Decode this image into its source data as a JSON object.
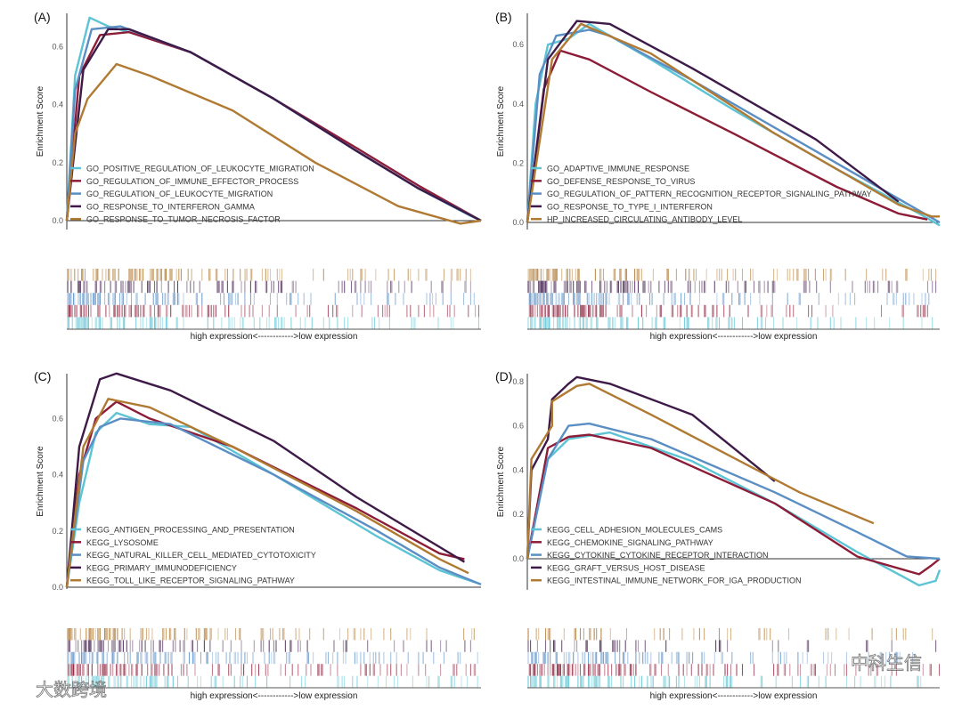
{
  "colors": {
    "cyan": "#5cc4d4",
    "red": "#8c1c38",
    "blue": "#5b8fc4",
    "purple": "#3e1a48",
    "brown": "#b07a32"
  },
  "watermarks": {
    "left": "大数跨境",
    "right": "中科生信"
  },
  "chart_data": [
    {
      "type": "line",
      "panel_label": "(A)",
      "ylabel": "Enrichment Score",
      "xlabel": "high expression<------------>low expression",
      "ylim": [
        -0.03,
        0.72
      ],
      "yticks": [
        "0.0",
        "0.2",
        "0.4",
        "0.6"
      ],
      "ytick_values": [
        0,
        0.2,
        0.4,
        0.6
      ],
      "series": [
        {
          "name": "GO_POSITIVE_REGULATION_OF_LEUKOCYTE_MIGRATION",
          "color": "cyan",
          "points": [
            [
              0,
              0
            ],
            [
              0.02,
              0.5
            ],
            [
              0.055,
              0.7
            ],
            [
              0.1,
              0.67
            ],
            [
              0.2,
              0.63
            ],
            [
              0.3,
              0.58
            ],
            [
              0.5,
              0.42
            ],
            [
              0.7,
              0.24
            ],
            [
              0.85,
              0.11
            ],
            [
              0.97,
              0.02
            ],
            [
              1,
              0
            ]
          ]
        },
        {
          "name": "GO_REGULATION_OF_IMMUNE_EFFECTOR_PROCESS",
          "color": "red",
          "points": [
            [
              0,
              0
            ],
            [
              0.03,
              0.5
            ],
            [
              0.08,
              0.64
            ],
            [
              0.15,
              0.65
            ],
            [
              0.3,
              0.58
            ],
            [
              0.5,
              0.42
            ],
            [
              0.7,
              0.25
            ],
            [
              0.85,
              0.12
            ],
            [
              1,
              0
            ]
          ]
        },
        {
          "name": "GO_REGULATION_OF_LEUKOCYTE_MIGRATION",
          "color": "blue",
          "points": [
            [
              0,
              0
            ],
            [
              0.02,
              0.45
            ],
            [
              0.06,
              0.66
            ],
            [
              0.13,
              0.67
            ],
            [
              0.3,
              0.58
            ],
            [
              0.5,
              0.42
            ],
            [
              0.7,
              0.24
            ],
            [
              0.85,
              0.11
            ],
            [
              0.96,
              0.03
            ],
            [
              1,
              0
            ]
          ]
        },
        {
          "name": "GO_RESPONSE_TO_INTERFERON_GAMMA",
          "color": "purple",
          "points": [
            [
              0,
              0
            ],
            [
              0.04,
              0.52
            ],
            [
              0.1,
              0.66
            ],
            [
              0.15,
              0.66
            ],
            [
              0.3,
              0.58
            ],
            [
              0.5,
              0.42
            ],
            [
              0.7,
              0.24
            ],
            [
              0.85,
              0.11
            ],
            [
              1,
              0
            ]
          ]
        },
        {
          "name": "GO_RESPONSE_TO_TUMOR_NECROSIS_FACTOR",
          "color": "brown",
          "points": [
            [
              0,
              0
            ],
            [
              0.02,
              0.3
            ],
            [
              0.05,
              0.42
            ],
            [
              0.12,
              0.54
            ],
            [
              0.2,
              0.5
            ],
            [
              0.4,
              0.38
            ],
            [
              0.6,
              0.2
            ],
            [
              0.8,
              0.05
            ],
            [
              0.95,
              -0.01
            ],
            [
              1,
              0
            ]
          ]
        }
      ]
    },
    {
      "type": "line",
      "panel_label": "(B)",
      "ylabel": "Enrichment Score",
      "xlabel": "high expression<------------>low expression",
      "ylim": [
        -0.02,
        0.7
      ],
      "yticks": [
        "0.0",
        "0.2",
        "0.4",
        "0.6"
      ],
      "ytick_values": [
        0,
        0.2,
        0.4,
        0.6
      ],
      "series": [
        {
          "name": "GO_ADAPTIVE_IMMUNE_RESPONSE",
          "color": "cyan",
          "points": [
            [
              0,
              0
            ],
            [
              0.02,
              0.4
            ],
            [
              0.05,
              0.6
            ],
            [
              0.1,
              0.62
            ],
            [
              0.15,
              0.67
            ],
            [
              0.3,
              0.55
            ],
            [
              0.5,
              0.38
            ],
            [
              0.75,
              0.18
            ],
            [
              0.95,
              0.03
            ],
            [
              1,
              -0.01
            ]
          ]
        },
        {
          "name": "GO_DEFENSE_RESPONSE_TO_VIRUS",
          "color": "red",
          "points": [
            [
              0,
              0
            ],
            [
              0.04,
              0.45
            ],
            [
              0.08,
              0.58
            ],
            [
              0.15,
              0.55
            ],
            [
              0.3,
              0.44
            ],
            [
              0.5,
              0.3
            ],
            [
              0.75,
              0.12
            ],
            [
              0.9,
              0.03
            ],
            [
              0.97,
              0.01
            ]
          ]
        },
        {
          "name": "GO_REGULATION_OF_PATTERN_RECOGNITION_RECEPTOR_SIGNALING_PATHWAY",
          "color": "blue",
          "points": [
            [
              0,
              0
            ],
            [
              0.03,
              0.5
            ],
            [
              0.07,
              0.63
            ],
            [
              0.15,
              0.65
            ],
            [
              0.2,
              0.63
            ],
            [
              0.4,
              0.48
            ],
            [
              0.7,
              0.24
            ],
            [
              0.95,
              0.04
            ],
            [
              1,
              0
            ]
          ]
        },
        {
          "name": "GO_RESPONSE_TO_TYPE_I_INTERFERON",
          "color": "purple",
          "points": [
            [
              0,
              0
            ],
            [
              0.05,
              0.55
            ],
            [
              0.12,
              0.68
            ],
            [
              0.2,
              0.67
            ],
            [
              0.4,
              0.52
            ],
            [
              0.7,
              0.28
            ],
            [
              0.9,
              0.07
            ]
          ]
        },
        {
          "name": "HP_INCREASED_CIRCULATING_ANTIBODY_LEVEL",
          "color": "brown",
          "points": [
            [
              0,
              0
            ],
            [
              0.06,
              0.55
            ],
            [
              0.13,
              0.67
            ],
            [
              0.3,
              0.57
            ],
            [
              0.6,
              0.3
            ],
            [
              0.9,
              0.06
            ],
            [
              0.98,
              0.02
            ],
            [
              1,
              0.02
            ]
          ]
        }
      ]
    },
    {
      "type": "line",
      "panel_label": "(C)",
      "ylabel": "Enrichment Score",
      "xlabel": "high expression<------------>low expression",
      "ylim": [
        -0.01,
        0.78
      ],
      "yticks": [
        "0.0",
        "0.2",
        "0.4",
        "0.6"
      ],
      "ytick_values": [
        0,
        0.2,
        0.4,
        0.6
      ],
      "series": [
        {
          "name": "KEGG_ANTIGEN_PROCESSING_AND_PRESENTATION",
          "color": "cyan",
          "points": [
            [
              0,
              0
            ],
            [
              0.03,
              0.3
            ],
            [
              0.07,
              0.55
            ],
            [
              0.12,
              0.62
            ],
            [
              0.2,
              0.58
            ],
            [
              0.3,
              0.57
            ],
            [
              0.5,
              0.4
            ],
            [
              0.75,
              0.18
            ],
            [
              0.9,
              0.06
            ],
            [
              1,
              0.01
            ]
          ]
        },
        {
          "name": "KEGG_LYSOSOME",
          "color": "red",
          "points": [
            [
              0,
              0
            ],
            [
              0.03,
              0.4
            ],
            [
              0.07,
              0.6
            ],
            [
              0.12,
              0.66
            ],
            [
              0.2,
              0.6
            ],
            [
              0.4,
              0.5
            ],
            [
              0.7,
              0.28
            ],
            [
              0.9,
              0.12
            ],
            [
              0.96,
              0.1
            ]
          ]
        },
        {
          "name": "KEGG_NATURAL_KILLER_CELL_MEDIATED_CYTOTOXICITY",
          "color": "blue",
          "points": [
            [
              0,
              0
            ],
            [
              0.04,
              0.45
            ],
            [
              0.08,
              0.57
            ],
            [
              0.13,
              0.6
            ],
            [
              0.25,
              0.58
            ],
            [
              0.5,
              0.4
            ],
            [
              0.75,
              0.2
            ],
            [
              0.9,
              0.07
            ],
            [
              1,
              0.01
            ]
          ]
        },
        {
          "name": "KEGG_PRIMARY_IMMUNODEFICIENCY",
          "color": "purple",
          "points": [
            [
              0,
              0
            ],
            [
              0.03,
              0.5
            ],
            [
              0.08,
              0.74
            ],
            [
              0.12,
              0.76
            ],
            [
              0.25,
              0.7
            ],
            [
              0.5,
              0.52
            ],
            [
              0.7,
              0.32
            ],
            [
              0.96,
              0.09
            ]
          ]
        },
        {
          "name": "KEGG_TOLL_LIKE_RECEPTOR_SIGNALING_PATHWAY",
          "color": "brown",
          "points": [
            [
              0,
              0
            ],
            [
              0.04,
              0.5
            ],
            [
              0.1,
              0.67
            ],
            [
              0.2,
              0.64
            ],
            [
              0.4,
              0.5
            ],
            [
              0.7,
              0.27
            ],
            [
              0.9,
              0.1
            ],
            [
              0.97,
              0.05
            ]
          ]
        }
      ]
    },
    {
      "type": "line",
      "panel_label": "(D)",
      "ylabel": "Enrichment Score",
      "xlabel": "high expression<------------>low expression",
      "ylim": [
        -0.14,
        0.84
      ],
      "yticks": [
        "0.0",
        "0.2",
        "0.4",
        "0.6",
        "0.8"
      ],
      "ytick_values": [
        0,
        0.2,
        0.4,
        0.6,
        0.8
      ],
      "series": [
        {
          "name": "KEGG_CELL_ADHESION_MOLECULES_CAMS",
          "color": "cyan",
          "points": [
            [
              0,
              0
            ],
            [
              0.05,
              0.45
            ],
            [
              0.1,
              0.54
            ],
            [
              0.2,
              0.57
            ],
            [
              0.4,
              0.44
            ],
            [
              0.6,
              0.25
            ],
            [
              0.8,
              0.03
            ],
            [
              0.95,
              -0.12
            ],
            [
              0.99,
              -0.1
            ],
            [
              1,
              -0.05
            ]
          ]
        },
        {
          "name": "KEGG_CHEMOKINE_SIGNALING_PATHWAY",
          "color": "red",
          "points": [
            [
              0,
              0
            ],
            [
              0.05,
              0.5
            ],
            [
              0.1,
              0.55
            ],
            [
              0.15,
              0.56
            ],
            [
              0.3,
              0.5
            ],
            [
              0.6,
              0.25
            ],
            [
              0.8,
              0.01
            ],
            [
              0.95,
              -0.07
            ],
            [
              0.98,
              -0.03
            ],
            [
              1,
              0
            ]
          ]
        },
        {
          "name": "KEGG_CYTOKINE_CYTOKINE_RECEPTOR_INTERACTION",
          "color": "blue",
          "points": [
            [
              0,
              0
            ],
            [
              0.05,
              0.45
            ],
            [
              0.1,
              0.6
            ],
            [
              0.15,
              0.61
            ],
            [
              0.3,
              0.54
            ],
            [
              0.6,
              0.3
            ],
            [
              0.8,
              0.12
            ],
            [
              0.92,
              0.01
            ],
            [
              1,
              0
            ]
          ]
        },
        {
          "name": "KEGG_GRAFT_VERSUS_HOST_DISEASE",
          "color": "purple",
          "points": [
            [
              0,
              0
            ],
            [
              0.01,
              0.4
            ],
            [
              0.05,
              0.54
            ],
            [
              0.06,
              0.72
            ],
            [
              0.1,
              0.79
            ],
            [
              0.12,
              0.82
            ],
            [
              0.2,
              0.79
            ],
            [
              0.4,
              0.65
            ],
            [
              0.6,
              0.35
            ]
          ]
        },
        {
          "name": "KEGG_INTESTINAL_IMMUNE_NETWORK_FOR_IGA_PRODUCTION",
          "color": "brown",
          "points": [
            [
              0,
              0
            ],
            [
              0.01,
              0.45
            ],
            [
              0.06,
              0.6
            ],
            [
              0.06,
              0.71
            ],
            [
              0.12,
              0.78
            ],
            [
              0.15,
              0.79
            ],
            [
              0.3,
              0.65
            ],
            [
              0.66,
              0.3
            ],
            [
              0.84,
              0.16
            ]
          ]
        }
      ]
    }
  ]
}
